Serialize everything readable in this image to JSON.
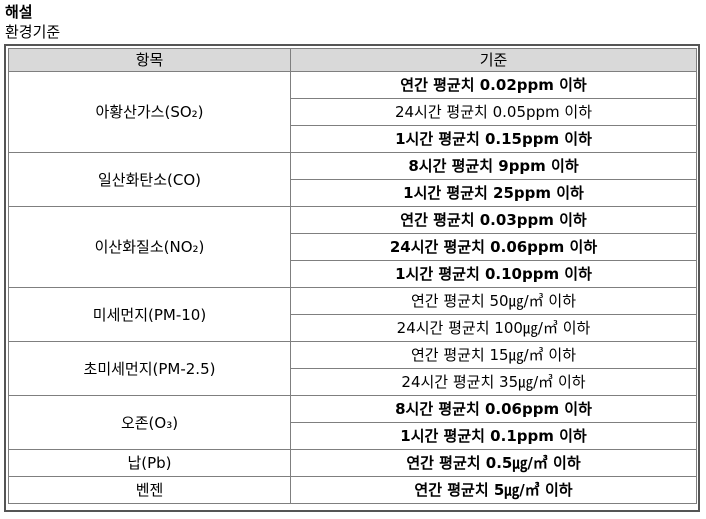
{
  "heading": "해설",
  "subheading": "환경기준",
  "table": {
    "headers": [
      "항목",
      "기준"
    ],
    "groups": [
      {
        "item": "아황산가스(SO₂)",
        "criteria": [
          {
            "text": "연간 평균치 0.02ppm 이하",
            "bold": true
          },
          {
            "text": "24시간 평균치 0.05ppm 이하",
            "bold": false
          },
          {
            "text": "1시간 평균치 0.15ppm 이하",
            "bold": true
          }
        ]
      },
      {
        "item": "일산화탄소(CO)",
        "criteria": [
          {
            "text": "8시간 평균치 9ppm 이하",
            "bold": true
          },
          {
            "text": "1시간 평균치 25ppm 이하",
            "bold": true
          }
        ]
      },
      {
        "item": "이산화질소(NO₂)",
        "criteria": [
          {
            "text": "연간 평균치 0.03ppm 이하",
            "bold": true
          },
          {
            "text": "24시간 평균치 0.06ppm 이하",
            "bold": true
          },
          {
            "text": "1시간 평균치 0.10ppm 이하",
            "bold": true
          }
        ]
      },
      {
        "item": "미세먼지(PM-10)",
        "criteria": [
          {
            "text": "연간 평균치 50㎍/㎥ 이하",
            "bold": false
          },
          {
            "text": "24시간 평균치 100㎍/㎥ 이하",
            "bold": false
          }
        ]
      },
      {
        "item": "초미세먼지(PM-2.5)",
        "criteria": [
          {
            "text": "연간 평균치 15㎍/㎥ 이하",
            "bold": false
          },
          {
            "text": "24시간 평균치 35㎍/㎥ 이하",
            "bold": false
          }
        ]
      },
      {
        "item": "오존(O₃)",
        "criteria": [
          {
            "text": "8시간 평균치 0.06ppm 이하",
            "bold": true
          },
          {
            "text": "1시간 평균치 0.1ppm 이하",
            "bold": true
          }
        ]
      },
      {
        "item": "납(Pb)",
        "criteria": [
          {
            "text": "연간 평균치 0.5㎍/㎥ 이하",
            "bold": true
          }
        ]
      },
      {
        "item": "벤젠",
        "criteria": [
          {
            "text": "연간 평균치 5㎍/㎥ 이하",
            "bold": true
          }
        ]
      }
    ]
  },
  "colors": {
    "header_bg": "#d9d9d9",
    "grid_line": "#7f7f7f",
    "frame": "#555555",
    "text": "#000000"
  }
}
